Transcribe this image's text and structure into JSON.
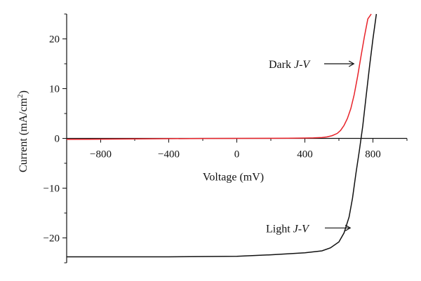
{
  "chart_data": {
    "type": "line",
    "title": "",
    "xlabel": "Voltage (mV)",
    "ylabel": "Current (mA/cm²)",
    "ylabel_parts": {
      "main": "Current (mA/cm",
      "sup": "2",
      "end": ")"
    },
    "xlim": [
      -1000,
      1000
    ],
    "ylim": [
      -25,
      25
    ],
    "x_ticks": [
      -800,
      -400,
      0,
      400,
      800
    ],
    "x_tick_labels": [
      "−800",
      "−400",
      "0",
      "400",
      "800"
    ],
    "y_ticks": [
      20,
      10,
      0,
      -10,
      -20
    ],
    "y_tick_labels": [
      "20",
      "10",
      "0",
      "−10",
      "−20"
    ],
    "grid": false,
    "colors": {
      "dark": "#e8232a",
      "light": "#111111",
      "axis": "#111111"
    },
    "series": [
      {
        "label": "Dark",
        "color": "#e8232a",
        "x": [
          -1000,
          -800,
          -600,
          -400,
          -200,
          0,
          200,
          300,
          400,
          450,
          500,
          530,
          560,
          590,
          610,
          630,
          650,
          670,
          690,
          710,
          730,
          750,
          770,
          790
        ],
        "y": [
          -0.2,
          -0.15,
          -0.1,
          -0.05,
          -0.02,
          0,
          0.02,
          0.04,
          0.07,
          0.1,
          0.18,
          0.3,
          0.55,
          1.0,
          1.6,
          2.6,
          4.0,
          6.0,
          8.8,
          12.5,
          16.5,
          20.5,
          24.0,
          26.0
        ]
      },
      {
        "label": "Light",
        "color": "#111111",
        "x": [
          -1000,
          -800,
          -400,
          0,
          200,
          400,
          500,
          550,
          600,
          630,
          660,
          680,
          700,
          720,
          740,
          760,
          780,
          800,
          820
        ],
        "y": [
          -23.8,
          -23.8,
          -23.8,
          -23.7,
          -23.4,
          -23.0,
          -22.6,
          -22.0,
          -20.8,
          -19.0,
          -15.8,
          -12.0,
          -7.0,
          -2.5,
          2.5,
          8.5,
          14.5,
          20.0,
          26.0
        ]
      }
    ],
    "annotations": [
      {
        "label_main": "Dark ",
        "label_italic": "J-V",
        "target_series": "Dark",
        "x": 700,
        "y": 15
      },
      {
        "label_main": "Light ",
        "label_italic": "J-V",
        "target_series": "Light",
        "x": 675,
        "y": -18
      }
    ]
  }
}
